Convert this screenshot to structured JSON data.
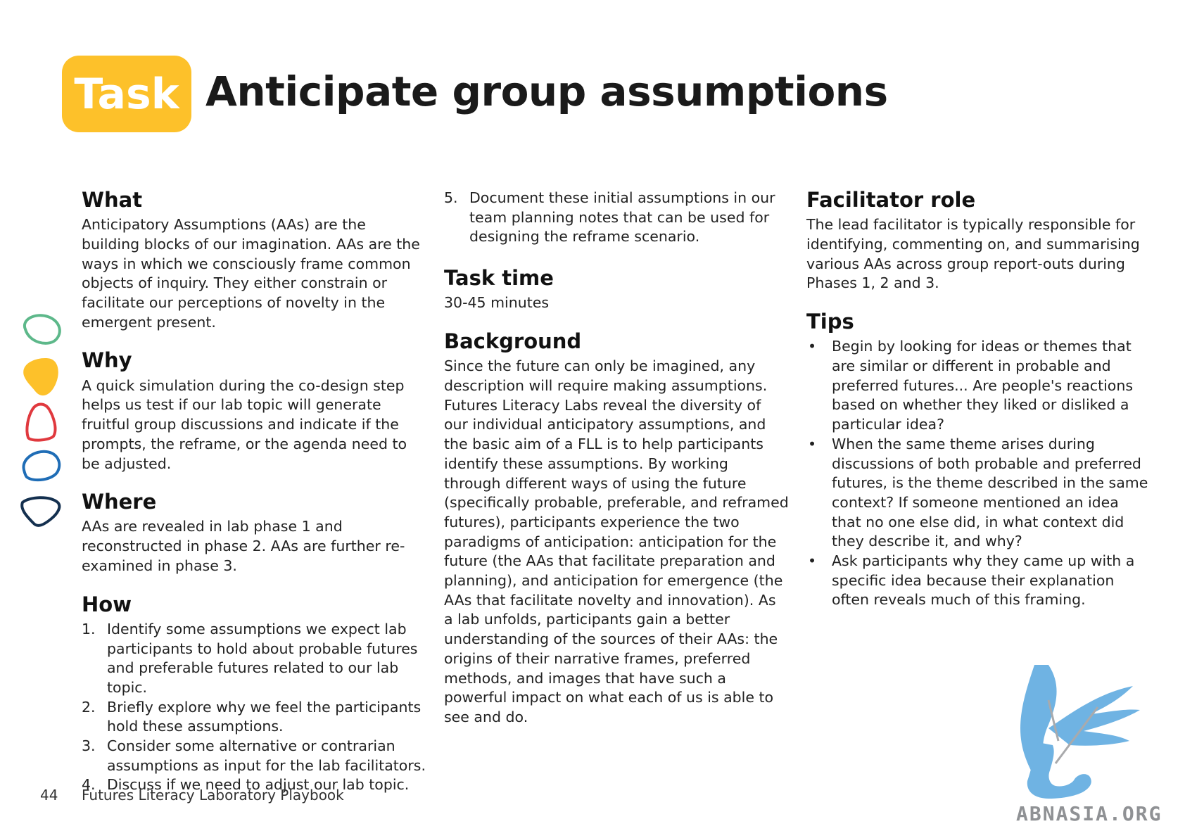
{
  "header": {
    "badge": "Task",
    "title": "Anticipate group assumptions"
  },
  "col1": {
    "what": {
      "heading": "What",
      "text": "Anticipatory Assumptions (AAs) are the building blocks of our imagination. AAs are the ways in which we consciously frame common objects of inquiry. They either constrain or facilitate our perceptions of novelty in the emergent present."
    },
    "why": {
      "heading": "Why",
      "text": "A quick simulation during the co-design step helps us test if our lab topic will generate fruitful group discussions and indicate if the prompts, the reframe, or the agenda need to be adjusted."
    },
    "where": {
      "heading": "Where",
      "text": "AAs are revealed in lab phase 1 and reconstructed in phase 2. AAs are further re-examined in phase 3."
    },
    "how": {
      "heading": "How",
      "items": [
        {
          "num": "1.",
          "text": "Identify some assumptions we expect lab participants to hold about probable futures and preferable futures related to our lab topic."
        },
        {
          "num": "2.",
          "text": "Briefly explore why we feel the participants hold these assumptions."
        },
        {
          "num": "3.",
          "text": "Consider some alternative or contrarian assumptions as input for the lab facilitators."
        },
        {
          "num": "4.",
          "text": "Discuss if we need to adjust our lab topic."
        }
      ]
    }
  },
  "col2": {
    "how_cont": {
      "num": "5.",
      "text": "Document these initial assumptions in our team planning notes that can be used for designing the reframe scenario."
    },
    "task_time": {
      "heading": "Task time",
      "text": "30-45 minutes"
    },
    "background": {
      "heading": "Background",
      "text": "Since the future can only be imagined, any description will require making assumptions. Futures Literacy Labs reveal the diversity of our individual anticipatory assumptions, and the basic aim of a FLL is to help participants identify these assumptions. By working through different ways of using the future (specifically probable, preferable, and reframed futures), participants experience the two paradigms of anticipation: anticipation for the future (the AAs that facilitate preparation and planning), and anticipation for emergence (the AAs that facilitate novelty and innovation). As a lab unfolds, participants gain a better understanding of the sources of their AAs: the origins of their narrative frames, preferred methods, and images that have such a powerful impact on what each of us is able to see and do."
    }
  },
  "col3": {
    "facilitator": {
      "heading": "Facilitator role",
      "text": "The lead facilitator is typically responsible for identifying, commenting on, and summarising various AAs across group report-outs during Phases 1, 2 and 3."
    },
    "tips": {
      "heading": "Tips",
      "bullet": "•",
      "items": [
        "Begin by looking for ideas or themes that are similar or different in probable and preferred futures...  Are people's reactions based on whether they liked or disliked a particular idea?",
        "When the same theme arises during discussions of both probable and preferred futures, is the theme described in the same context? If someone mentioned an idea that no one else did, in what context did they describe it, and why?",
        "Ask participants why they came up with a specific idea because their explanation often reveals much of this framing."
      ]
    }
  },
  "footer": {
    "page_number": "44",
    "book_title": "Futures Literacy Laboratory Playbook"
  },
  "watermark": {
    "text": "ABNASIA.ORG",
    "icon": "griffin-logo-icon"
  },
  "colors": {
    "badge": "#fdc12a",
    "shape_green": "#5db88a",
    "shape_yellow": "#fdc12a",
    "shape_red": "#e0393e",
    "shape_blue": "#1f6db6",
    "shape_navy": "#14304f",
    "logo_blue": "#6fb3e3"
  }
}
